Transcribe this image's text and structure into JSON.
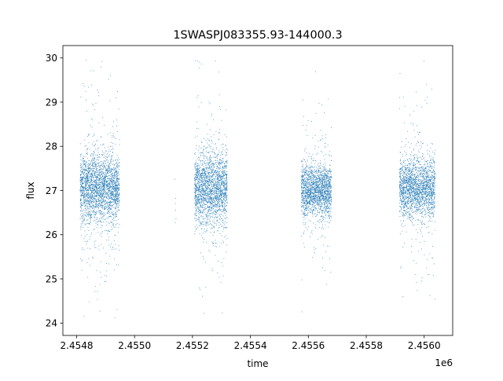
{
  "chart_data": {
    "type": "scatter",
    "title": "1SWASPJ083355.93-144000.3",
    "xlabel": "time",
    "ylabel": "flux",
    "x_offset_label": "1e6",
    "xlim": [
      2454752.5,
      2456098.5
    ],
    "ylim": [
      23.72,
      30.28
    ],
    "x_ticks": [
      {
        "value": 2454800,
        "label": "2.4548"
      },
      {
        "value": 2455000,
        "label": "2.4550"
      },
      {
        "value": 2455200,
        "label": "2.4552"
      },
      {
        "value": 2455400,
        "label": "2.4554"
      },
      {
        "value": 2455600,
        "label": "2.4556"
      },
      {
        "value": 2455800,
        "label": "2.4558"
      },
      {
        "value": 2456000,
        "label": "2.4560"
      }
    ],
    "y_ticks": [
      {
        "value": 24,
        "label": "24"
      },
      {
        "value": 25,
        "label": "25"
      },
      {
        "value": 26,
        "label": "26"
      },
      {
        "value": 27,
        "label": "27"
      },
      {
        "value": 28,
        "label": "28"
      },
      {
        "value": 29,
        "label": "29"
      },
      {
        "value": 30,
        "label": "30"
      }
    ],
    "grid": false,
    "legend": "none",
    "marker_color": "#1f77b4",
    "series": [
      {
        "seasons": [
          {
            "start": 2454812,
            "end": 2454948,
            "n": 2600,
            "center": 27.05,
            "spread": 0.38,
            "tail": 0.12,
            "min": 24.05,
            "max": 29.95
          },
          {
            "start": 2455138,
            "end": 2455144,
            "n": 6,
            "center": 26.9,
            "spread": 0.5,
            "tail": 0.0,
            "min": 26.2,
            "max": 27.6
          },
          {
            "start": 2455207,
            "end": 2455320,
            "n": 2200,
            "center": 27.05,
            "spread": 0.4,
            "tail": 0.1,
            "min": 24.05,
            "max": 30.0
          },
          {
            "start": 2455576,
            "end": 2455680,
            "n": 1900,
            "center": 27.0,
            "spread": 0.3,
            "tail": 0.08,
            "min": 24.1,
            "max": 29.9
          },
          {
            "start": 2455915,
            "end": 2456038,
            "n": 2100,
            "center": 27.05,
            "spread": 0.33,
            "tail": 0.1,
            "min": 24.1,
            "max": 30.05
          }
        ]
      }
    ]
  }
}
